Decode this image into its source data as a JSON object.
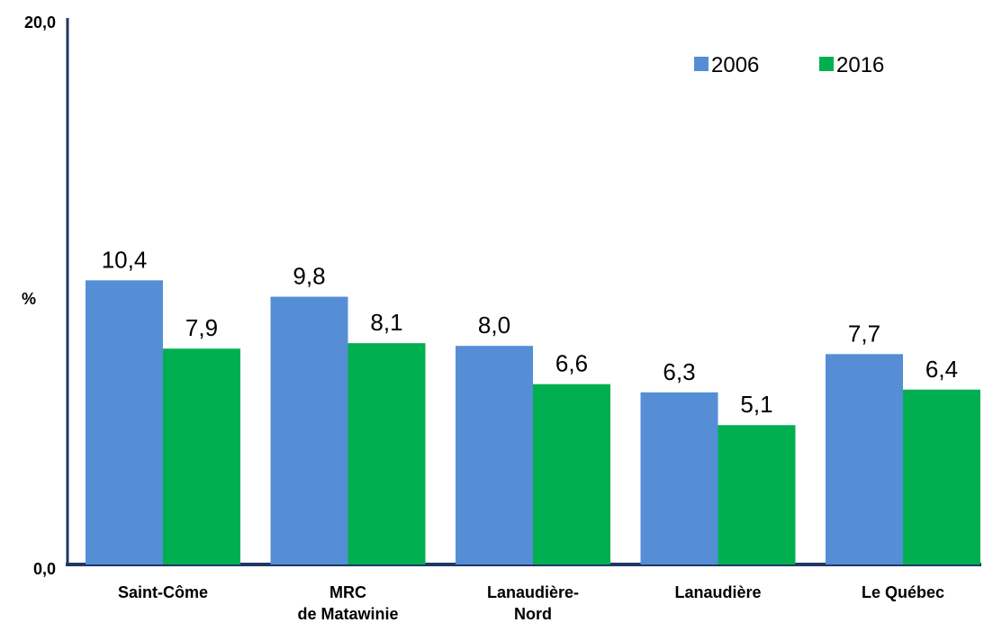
{
  "chart_data": {
    "type": "bar",
    "categories": [
      [
        "Saint-Côme"
      ],
      [
        "MRC",
        "de Matawinie"
      ],
      [
        "Lanaudière-",
        "Nord"
      ],
      [
        "Lanaudière"
      ],
      [
        "Le Québec"
      ]
    ],
    "series": [
      {
        "name": "2006",
        "color": "#558ED5",
        "values": [
          10.4,
          9.8,
          8.0,
          6.3,
          7.7
        ],
        "labels": [
          "10,4",
          "9,8",
          "8,0",
          "6,3",
          "7,7"
        ]
      },
      {
        "name": "2016",
        "color": "#00B050",
        "values": [
          7.9,
          8.1,
          6.6,
          5.1,
          6.4
        ],
        "labels": [
          "7,9",
          "8,1",
          "6,6",
          "5,1",
          "6,4"
        ]
      }
    ],
    "ylabel": "%",
    "ylim": [
      0,
      20
    ],
    "yticks": [
      "0,0",
      "20,0"
    ],
    "axis_color": "#1F3864",
    "legend": "top-right",
    "grid": false
  }
}
